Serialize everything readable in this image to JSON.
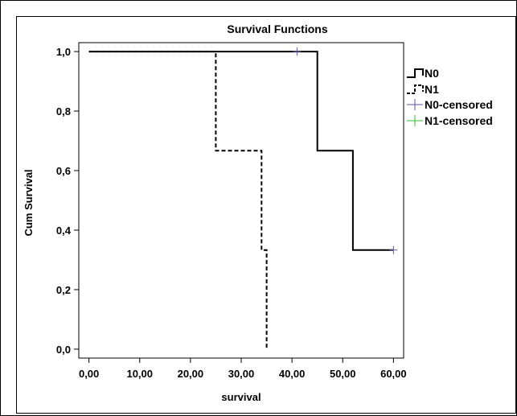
{
  "chart_data": {
    "type": "line",
    "title": "Survival Functions",
    "xlabel": "survival",
    "ylabel": "Cum Survival",
    "x_ticks": [
      "0,00",
      "10,00",
      "20,00",
      "30,00",
      "40,00",
      "50,00",
      "60,00"
    ],
    "x_tick_values": [
      0,
      10,
      20,
      30,
      40,
      50,
      60
    ],
    "y_ticks": [
      "0,0",
      "0,2",
      "0,4",
      "0,6",
      "0,8",
      "1,0"
    ],
    "y_tick_values": [
      0,
      0.2,
      0.4,
      0.6,
      0.8,
      1.0
    ],
    "xlim": [
      -2,
      62
    ],
    "ylim": [
      -0.03,
      1.03
    ],
    "grid": false,
    "legend_position": "right",
    "series": [
      {
        "name": "N0",
        "line_style": "solid",
        "color": "#000000",
        "x": [
          0,
          45,
          45,
          52,
          52,
          60
        ],
        "y": [
          1.0,
          1.0,
          0.667,
          0.667,
          0.333,
          0.333
        ]
      },
      {
        "name": "N1",
        "line_style": "dashed",
        "color": "#000000",
        "x": [
          0,
          25,
          25,
          34,
          34,
          35,
          35
        ],
        "y": [
          1.0,
          1.0,
          0.667,
          0.667,
          0.333,
          0.333,
          0.0
        ]
      }
    ],
    "censored": [
      {
        "name": "N0-censored",
        "color": "#5a5aa8",
        "points": [
          [
            41,
            1.0
          ],
          [
            60,
            0.333
          ]
        ]
      },
      {
        "name": "N1-censored",
        "color": "#33bb33",
        "points": []
      }
    ]
  }
}
